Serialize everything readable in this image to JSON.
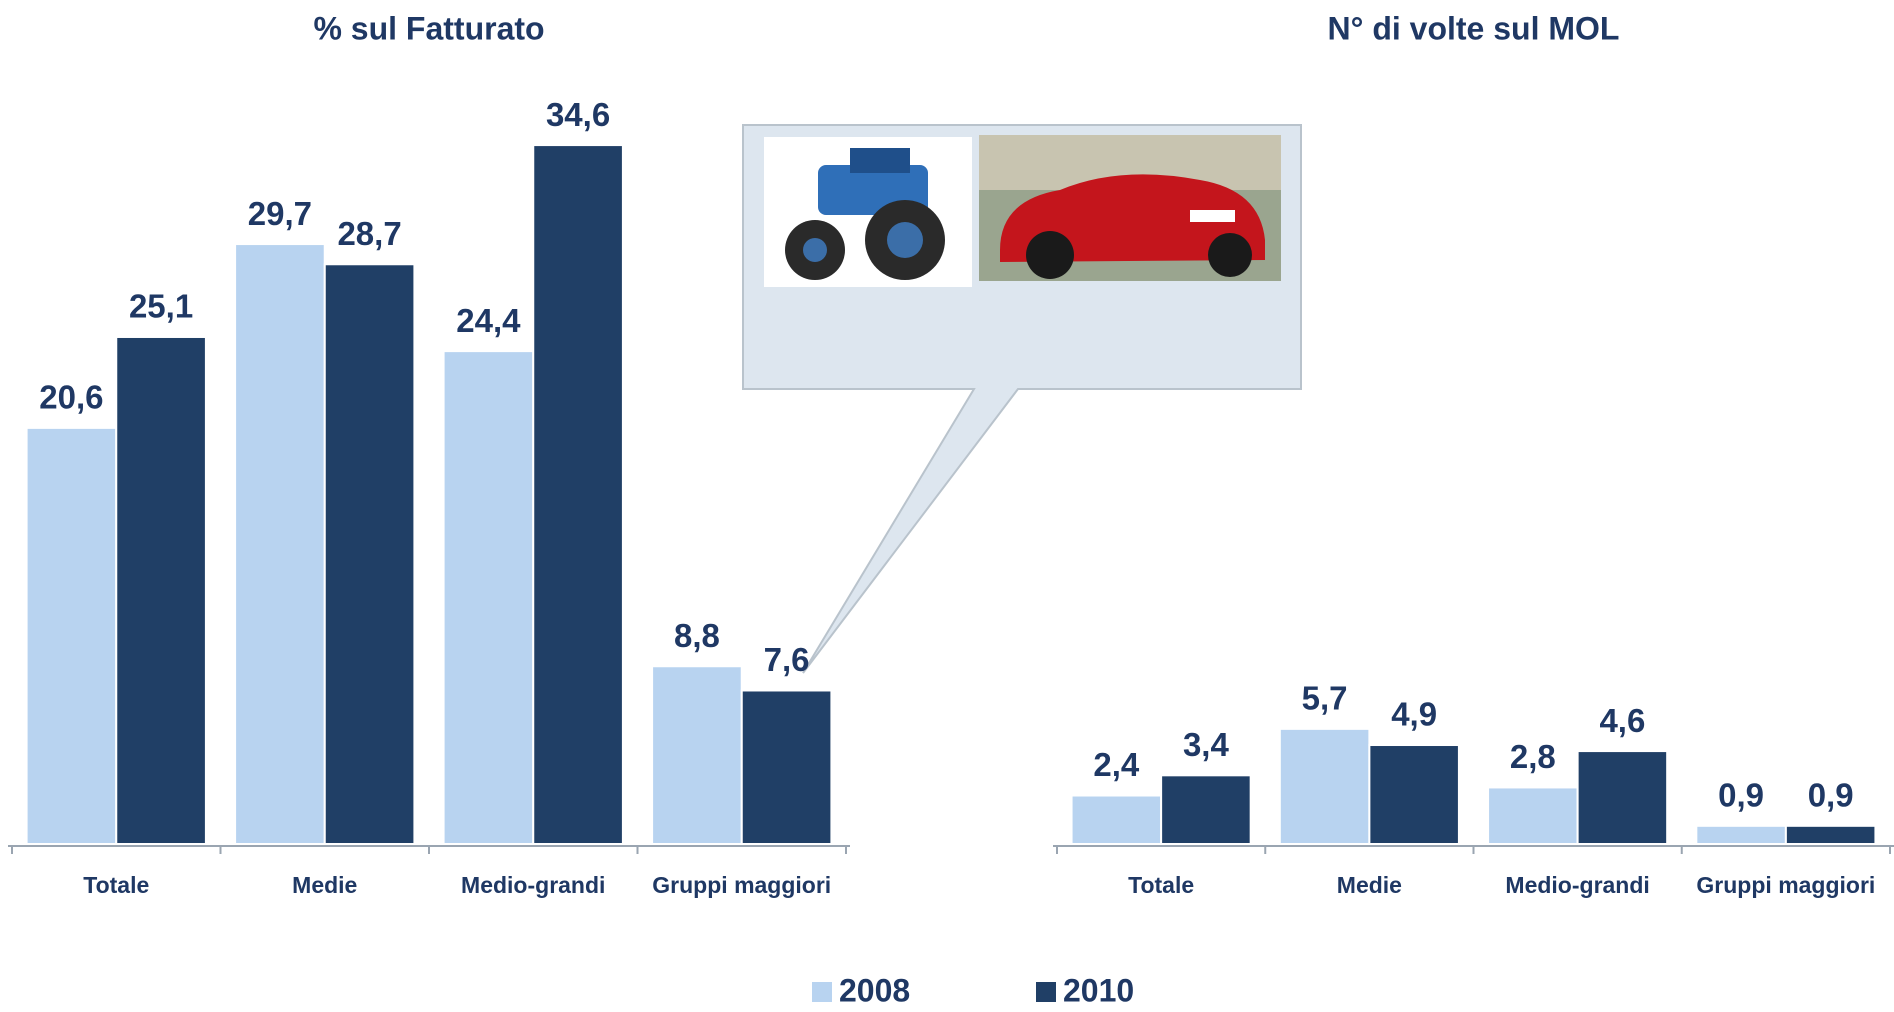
{
  "chart_data": [
    {
      "type": "bar",
      "title": "% sul Fatturato",
      "categories": [
        "Totale",
        "Medie",
        "Medio-grandi",
        "Gruppi maggiori"
      ],
      "series": [
        {
          "name": "2008",
          "color": "#b8d3f0",
          "values": [
            20.6,
            29.7,
            24.4,
            8.8
          ],
          "value_labels": [
            "20,6",
            "29,7",
            "24,4",
            "8,8"
          ]
        },
        {
          "name": "2010",
          "color": "#203f66",
          "values": [
            25.1,
            28.7,
            34.6,
            7.6
          ],
          "value_labels": [
            "25,1",
            "28,7",
            "34,6",
            "7,6"
          ]
        }
      ],
      "ylim": [
        0,
        35
      ]
    },
    {
      "type": "bar",
      "title": "N° di volte sul MOL",
      "categories": [
        "Totale",
        "Medie",
        "Medio-grandi",
        "Gruppi maggiori"
      ],
      "series": [
        {
          "color": "#b8d3f0",
          "values": [
            2.4,
            5.7,
            2.8,
            0.9
          ],
          "value_labels": [
            "2,4",
            "5,7",
            "2,8",
            "0,9"
          ]
        },
        {
          "color": "#203f66",
          "values": [
            3.4,
            4.9,
            4.6,
            0.9
          ],
          "value_labels": [
            "3,4",
            "4,9",
            "4,6",
            "0,9"
          ]
        }
      ],
      "ylim": [
        0,
        35
      ]
    }
  ]
}
